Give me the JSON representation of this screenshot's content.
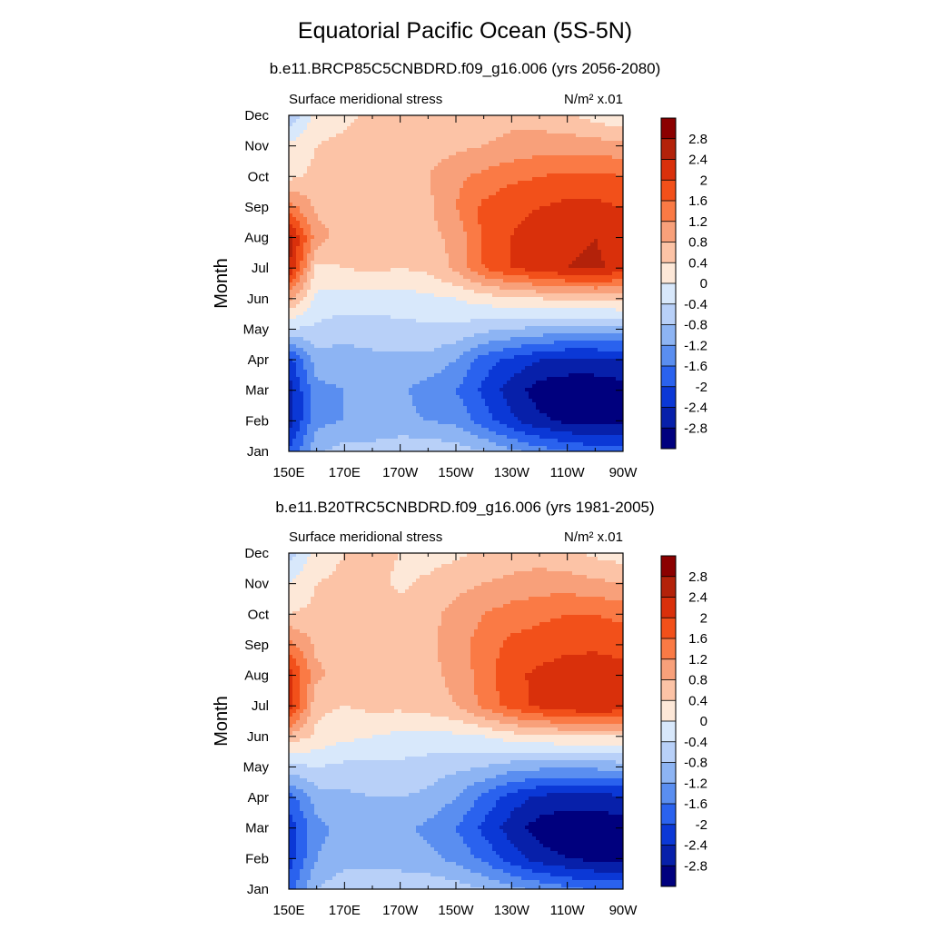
{
  "figure": {
    "title": "Equatorial Pacific Ocean (5S-5N)"
  },
  "colorbar": {
    "levels": [
      "2.8",
      "2.4",
      "2",
      "1.6",
      "1.2",
      "0.8",
      "0.4",
      "0",
      "-0.4",
      "-0.8",
      "-1.2",
      "-1.6",
      "-2",
      "-2.4",
      "-2.8"
    ],
    "colors": [
      "#8b0000",
      "#b3220a",
      "#d9300b",
      "#f2501a",
      "#fa7a45",
      "#f8a07a",
      "#fcc3a6",
      "#fde8d8",
      "#d8e8fb",
      "#b8d0f8",
      "#8db4f3",
      "#5a8ef0",
      "#2a62ee",
      "#0b38d6",
      "#0720aa",
      "#00007e"
    ]
  },
  "chart_data": [
    {
      "type": "heatmap",
      "title": "b.e11.BRCP85C5CNBDRD.f09_g16.006 (yrs 2056-2080)",
      "left_label": "Surface meridional stress",
      "units": "N/m² x.01",
      "ylabel": "Month",
      "xlabel": "",
      "x_ticks": [
        "150E",
        "170E",
        "170W",
        "150W",
        "130W",
        "110W",
        "90W"
      ],
      "y_ticks": [
        "Jan",
        "Feb",
        "Mar",
        "Apr",
        "May",
        "Jun",
        "Jul",
        "Aug",
        "Sep",
        "Oct",
        "Nov",
        "Dec"
      ],
      "lon_range": [
        150,
        270
      ],
      "lon": [
        150,
        160,
        170,
        180,
        190,
        200,
        210,
        220,
        230,
        240,
        250,
        260,
        270
      ],
      "months": [
        "Jan",
        "Feb",
        "Mar",
        "Apr",
        "May",
        "Jun",
        "Jul",
        "Aug",
        "Sep",
        "Oct",
        "Nov",
        "Dec"
      ],
      "values": [
        [
          -2.0,
          -0.9,
          -0.6,
          -0.6,
          -0.5,
          -0.5,
          -0.6,
          -0.8,
          -1.1,
          -1.4,
          -1.6,
          -1.8,
          -1.8
        ],
        [
          -2.6,
          -1.3,
          -1.2,
          -1.2,
          -1.1,
          -1.2,
          -1.3,
          -1.8,
          -2.3,
          -2.7,
          -2.9,
          -3.0,
          -3.0
        ],
        [
          -2.6,
          -1.3,
          -1.2,
          -1.1,
          -1.1,
          -1.4,
          -1.6,
          -2.1,
          -2.6,
          -3.0,
          -3.1,
          -3.1,
          -3.0
        ],
        [
          -2.2,
          -1.0,
          -1.0,
          -0.9,
          -0.9,
          -0.9,
          -1.2,
          -1.8,
          -2.1,
          -2.4,
          -2.5,
          -2.5,
          -2.4
        ],
        [
          -0.4,
          -0.5,
          -0.6,
          -0.6,
          -0.5,
          -0.5,
          -0.5,
          -0.7,
          -0.8,
          -0.9,
          -1.0,
          -1.0,
          -1.0
        ],
        [
          0.9,
          -0.1,
          -0.2,
          -0.2,
          -0.2,
          -0.1,
          0.0,
          0.2,
          0.3,
          0.4,
          0.5,
          0.5,
          0.6
        ],
        [
          2.5,
          0.3,
          0.4,
          0.5,
          0.4,
          0.5,
          0.9,
          1.6,
          2.0,
          2.2,
          2.4,
          2.5,
          2.2
        ],
        [
          2.6,
          1.0,
          0.6,
          0.6,
          0.7,
          0.7,
          0.9,
          1.7,
          2.0,
          2.2,
          2.3,
          2.4,
          2.2
        ],
        [
          1.4,
          0.7,
          0.6,
          0.6,
          0.6,
          0.7,
          1.2,
          1.7,
          1.9,
          2.0,
          2.1,
          2.1,
          2.0
        ],
        [
          0.3,
          0.5,
          0.6,
          0.7,
          0.7,
          0.8,
          1.1,
          1.3,
          1.5,
          1.6,
          1.7,
          1.7,
          1.6
        ],
        [
          0.1,
          0.4,
          0.5,
          0.6,
          0.6,
          0.6,
          0.7,
          0.8,
          0.9,
          1.0,
          1.0,
          1.0,
          0.9
        ],
        [
          -0.8,
          0.2,
          0.3,
          0.5,
          0.5,
          0.5,
          0.6,
          0.6,
          0.7,
          0.6,
          0.5,
          0.2,
          0.1
        ]
      ]
    },
    {
      "type": "heatmap",
      "title": "b.e11.B20TRC5CNBDRD.f09_g16.006 (yrs 1981-2005)",
      "left_label": "Surface meridional stress",
      "units": "N/m² x.01",
      "ylabel": "Month",
      "xlabel": "",
      "x_ticks": [
        "150E",
        "170E",
        "170W",
        "150W",
        "130W",
        "110W",
        "90W"
      ],
      "y_ticks": [
        "Jan",
        "Feb",
        "Mar",
        "Apr",
        "May",
        "Jun",
        "Jul",
        "Aug",
        "Sep",
        "Oct",
        "Nov",
        "Dec"
      ],
      "lon_range": [
        150,
        270
      ],
      "lon": [
        150,
        160,
        170,
        180,
        190,
        200,
        210,
        220,
        230,
        240,
        250,
        260,
        270
      ],
      "months": [
        "Jan",
        "Feb",
        "Mar",
        "Apr",
        "May",
        "Jun",
        "Jul",
        "Aug",
        "Sep",
        "Oct",
        "Nov",
        "Dec"
      ],
      "values": [
        [
          -1.8,
          -0.8,
          -0.5,
          -0.5,
          -0.5,
          -0.5,
          -0.6,
          -0.8,
          -1.1,
          -1.3,
          -1.5,
          -1.7,
          -1.7
        ],
        [
          -2.2,
          -1.2,
          -1.0,
          -1.0,
          -1.0,
          -1.1,
          -1.3,
          -1.7,
          -2.2,
          -2.6,
          -2.8,
          -2.9,
          -2.9
        ],
        [
          -2.3,
          -1.3,
          -1.1,
          -1.1,
          -1.1,
          -1.3,
          -1.6,
          -2.1,
          -2.6,
          -3.0,
          -3.1,
          -3.1,
          -3.0
        ],
        [
          -1.8,
          -1.0,
          -0.9,
          -0.8,
          -0.8,
          -0.9,
          -1.2,
          -1.7,
          -2.2,
          -2.5,
          -2.6,
          -2.6,
          -2.5
        ],
        [
          -0.5,
          -0.4,
          -0.5,
          -0.5,
          -0.5,
          -0.6,
          -0.7,
          -0.8,
          -1.0,
          -1.1,
          -1.1,
          -1.1,
          -1.0
        ],
        [
          0.7,
          0.3,
          0.1,
          0.0,
          -0.1,
          -0.1,
          -0.1,
          0.0,
          0.2,
          0.3,
          0.4,
          0.4,
          0.4
        ],
        [
          2.3,
          0.5,
          0.4,
          0.5,
          0.5,
          0.6,
          0.8,
          1.3,
          1.8,
          2.1,
          2.3,
          2.4,
          2.3
        ],
        [
          2.2,
          0.9,
          0.6,
          0.6,
          0.6,
          0.7,
          0.9,
          1.4,
          1.9,
          2.1,
          2.2,
          2.3,
          2.2
        ],
        [
          1.4,
          0.7,
          0.6,
          0.6,
          0.6,
          0.7,
          1.0,
          1.4,
          1.7,
          1.8,
          1.9,
          1.9,
          1.8
        ],
        [
          0.4,
          0.5,
          0.6,
          0.6,
          0.6,
          0.7,
          0.9,
          1.2,
          1.4,
          1.5,
          1.6,
          1.6,
          1.5
        ],
        [
          0.0,
          0.4,
          0.5,
          0.6,
          0.3,
          0.5,
          0.7,
          0.8,
          0.9,
          1.0,
          1.0,
          0.9,
          0.8
        ],
        [
          -0.6,
          0.2,
          0.4,
          0.5,
          0.4,
          0.2,
          0.3,
          0.5,
          0.6,
          0.6,
          0.5,
          0.3,
          0.2
        ]
      ]
    }
  ]
}
